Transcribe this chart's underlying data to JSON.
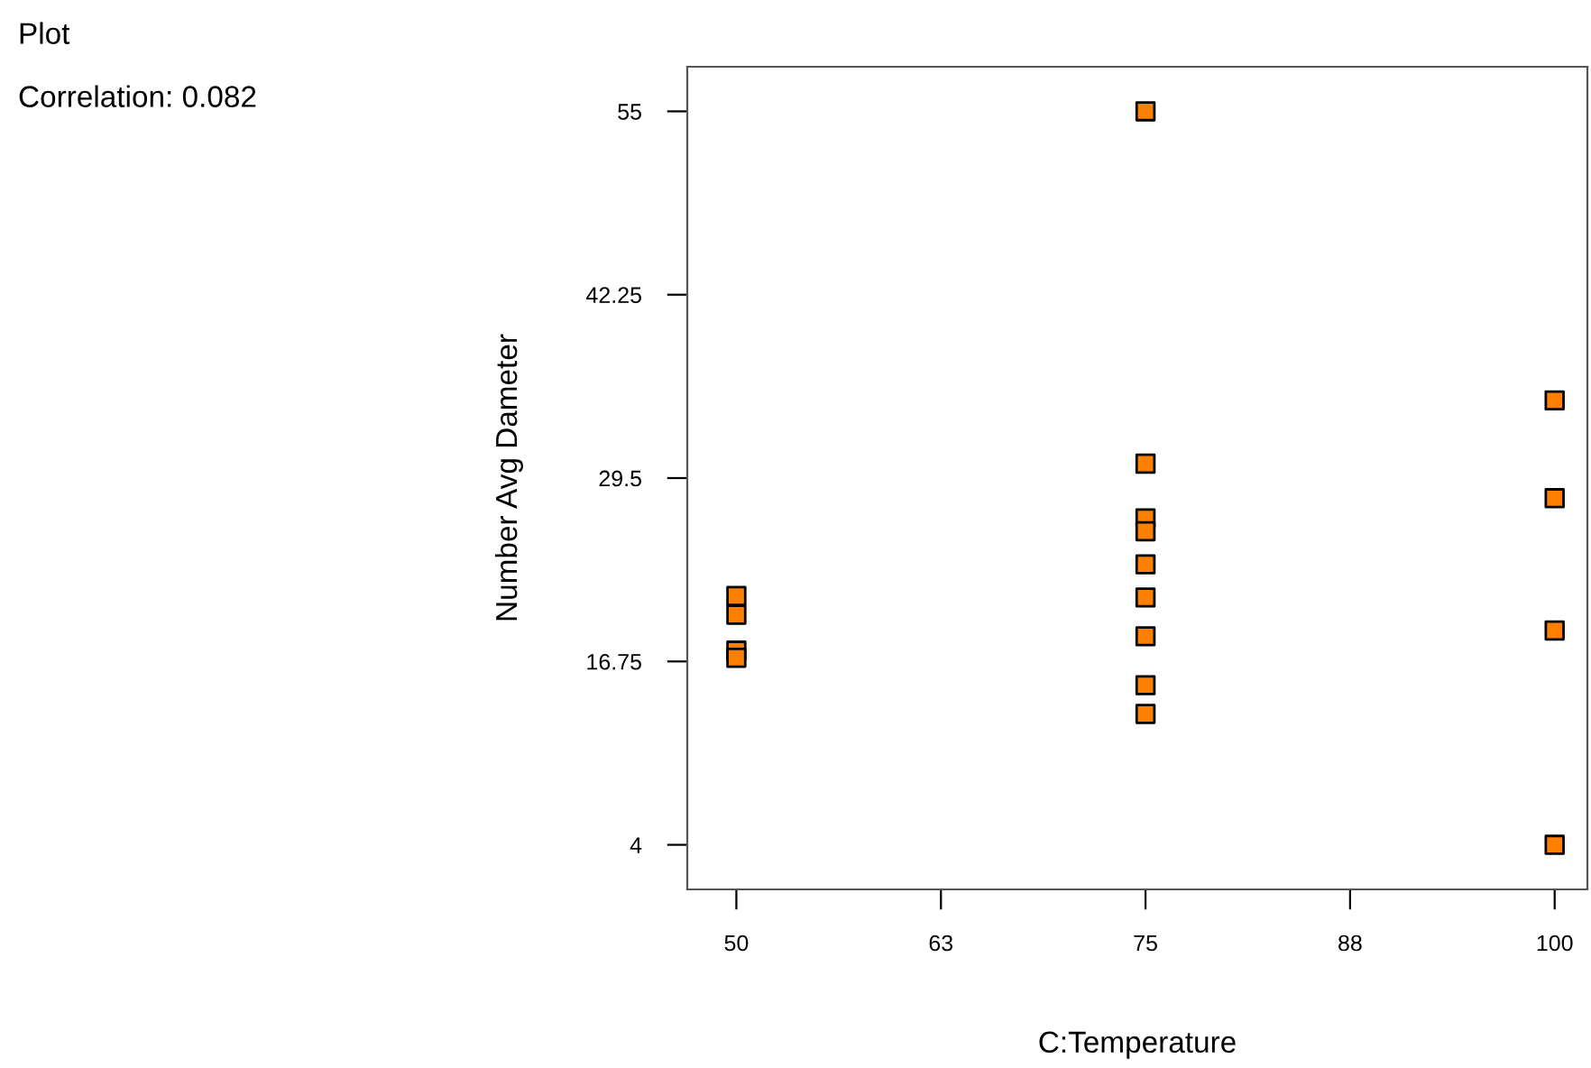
{
  "chart_data": {
    "type": "scatter",
    "title": "Plot",
    "xlabel": "C:Temperature",
    "ylabel": "Number Avg Dameter",
    "annotations": [
      "Correlation: 0.082"
    ],
    "x": [
      50,
      50,
      50,
      50,
      75,
      75,
      75,
      75,
      75,
      75,
      75,
      75,
      75,
      100,
      100,
      100,
      100
    ],
    "series": [
      {
        "color": "#ff8000",
        "values": [
          21.3,
          20.0,
          17.5,
          17.0,
          55,
          30.5,
          26.7,
          25.8,
          23.5,
          21.2,
          18.5,
          15.1,
          13.1,
          34.9,
          28.1,
          18.9,
          4.0
        ]
      }
    ],
    "marker": "square",
    "grid": false,
    "legend": false,
    "xlim": [
      47,
      102
    ],
    "ylim": [
      0.9,
      58.1
    ],
    "xticks": [
      50,
      {
        "value": 62.5,
        "label": "63"
      },
      75,
      {
        "value": 87.5,
        "label": "88"
      },
      100
    ],
    "yticks": [
      4,
      16.75,
      29.5,
      42.25,
      55
    ]
  }
}
